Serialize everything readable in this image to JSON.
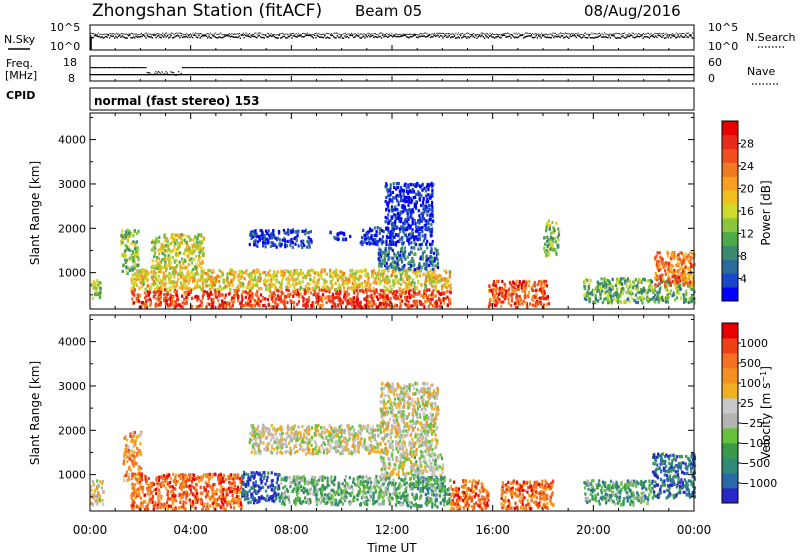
{
  "header": {
    "station": "Zhongshan Station (fitACF)",
    "beam": "Beam 05",
    "date": "08/Aug/2016"
  },
  "noise_panel": {
    "left_label": "N.Sky",
    "right_label": "N.Search",
    "left_ticks": [
      "10^5",
      "10^0"
    ],
    "right_ticks": [
      "10^5",
      "10^0"
    ]
  },
  "freq_panel": {
    "label_line1": "Freq.",
    "label_line2": "[MHz]",
    "left_ticks": [
      "18",
      "8"
    ],
    "right_label": "Nave",
    "right_ticks": [
      "60",
      "0"
    ]
  },
  "cpid_panel": {
    "label": "CPID",
    "text": "normal (fast stereo) 153"
  },
  "x_axis": {
    "label": "Time UT",
    "ticks": [
      "00:00",
      "04:00",
      "08:00",
      "12:00",
      "16:00",
      "20:00",
      "00:00"
    ]
  },
  "chart_data": [
    {
      "type": "heatmap",
      "ylabel": "Slant Range [km]",
      "yticks": [
        "1000",
        "2000",
        "3000",
        "4000"
      ],
      "ylim": [
        180,
        4600
      ],
      "xlim_hours": [
        0,
        24
      ],
      "colorbar_label": "Power [dB]",
      "colorbar_ticks": [
        "4",
        "8",
        "12",
        "16",
        "20",
        "24",
        "28"
      ],
      "colorbar_colors": [
        "#0000ff",
        "#1a47c8",
        "#2d6a9c",
        "#3d8a6e",
        "#4daa4a",
        "#8cc63e",
        "#cddc28",
        "#f0c020",
        "#f5a020",
        "#f07a20",
        "#ee5020",
        "#e82a1c",
        "#e60000"
      ],
      "regions": [
        {
          "t0": 0.0,
          "t1": 0.4,
          "r0": 400,
          "r1": 900,
          "lvl": 0.45
        },
        {
          "t0": 1.2,
          "t1": 1.9,
          "r0": 1000,
          "r1": 2000,
          "lvl": 0.4
        },
        {
          "t0": 1.6,
          "t1": 14.3,
          "r0": 250,
          "r1": 650,
          "lvl": 0.85
        },
        {
          "t0": 1.6,
          "t1": 14.3,
          "r0": 650,
          "r1": 1100,
          "lvl": 0.55
        },
        {
          "t0": 2.4,
          "t1": 4.5,
          "r0": 1100,
          "r1": 1900,
          "lvl": 0.5
        },
        {
          "t0": 6.3,
          "t1": 8.8,
          "r0": 1600,
          "r1": 2000,
          "lvl": 0.1
        },
        {
          "t0": 9.5,
          "t1": 10.3,
          "r0": 1750,
          "r1": 1950,
          "lvl": 0.1
        },
        {
          "t0": 10.7,
          "t1": 13.6,
          "r0": 1650,
          "r1": 2050,
          "lvl": 0.08
        },
        {
          "t0": 11.7,
          "t1": 13.6,
          "r0": 2000,
          "r1": 3050,
          "lvl": 0.05
        },
        {
          "t0": 11.4,
          "t1": 13.8,
          "r0": 1100,
          "r1": 1600,
          "lvl": 0.2
        },
        {
          "t0": 15.8,
          "t1": 18.2,
          "r0": 250,
          "r1": 850,
          "lvl": 0.8
        },
        {
          "t0": 18.0,
          "t1": 18.6,
          "r0": 1400,
          "r1": 2200,
          "lvl": 0.4
        },
        {
          "t0": 19.6,
          "t1": 24.0,
          "r0": 350,
          "r1": 900,
          "lvl": 0.35
        },
        {
          "t0": 22.4,
          "t1": 24.0,
          "r0": 700,
          "r1": 1500,
          "lvl": 0.75
        }
      ]
    },
    {
      "type": "heatmap",
      "ylabel": "Slant Range [km]",
      "yticks": [
        "1000",
        "2000",
        "3000",
        "4000"
      ],
      "ylim": [
        180,
        4600
      ],
      "xlim_hours": [
        0,
        24
      ],
      "colorbar_label": "Velocity [m s^-1]",
      "colorbar_ticks": [
        "1000",
        "500",
        "100",
        "25",
        "−25",
        "−100",
        "−500",
        "−1000"
      ],
      "colorbar_colors": [
        "#2828c8",
        "#2b6aa8",
        "#2f8a78",
        "#3a9a4a",
        "#66c23c",
        "#b4b4b4",
        "#c8c8c8",
        "#f0b020",
        "#f59020",
        "#f57020",
        "#f04018",
        "#e60000"
      ],
      "regions": [
        {
          "t0": 0.0,
          "t1": 0.5,
          "r0": 350,
          "r1": 900,
          "lvl": 0.55
        },
        {
          "t0": 1.3,
          "t1": 2.0,
          "r0": 900,
          "r1": 2000,
          "lvl": 0.7
        },
        {
          "t0": 1.6,
          "t1": 6.0,
          "r0": 250,
          "r1": 1050,
          "lvl": 0.8
        },
        {
          "t0": 6.0,
          "t1": 7.5,
          "r0": 400,
          "r1": 1100,
          "lvl": 0.1
        },
        {
          "t0": 7.5,
          "t1": 12.5,
          "r0": 350,
          "r1": 1000,
          "lvl": 0.35
        },
        {
          "t0": 6.3,
          "t1": 13.8,
          "r0": 1500,
          "r1": 2150,
          "lvl": 0.52
        },
        {
          "t0": 11.5,
          "t1": 13.8,
          "r0": 2100,
          "r1": 3100,
          "lvl": 0.52
        },
        {
          "t0": 11.5,
          "t1": 14.0,
          "r0": 1000,
          "r1": 1500,
          "lvl": 0.5
        },
        {
          "t0": 12.5,
          "t1": 14.3,
          "r0": 300,
          "r1": 1000,
          "lvl": 0.3
        },
        {
          "t0": 14.3,
          "t1": 15.8,
          "r0": 250,
          "r1": 900,
          "lvl": 0.8
        },
        {
          "t0": 16.3,
          "t1": 18.4,
          "r0": 250,
          "r1": 900,
          "lvl": 0.8
        },
        {
          "t0": 19.6,
          "t1": 22.3,
          "r0": 350,
          "r1": 900,
          "lvl": 0.3
        },
        {
          "t0": 22.3,
          "t1": 24.0,
          "r0": 500,
          "r1": 1500,
          "lvl": 0.15
        }
      ]
    }
  ]
}
